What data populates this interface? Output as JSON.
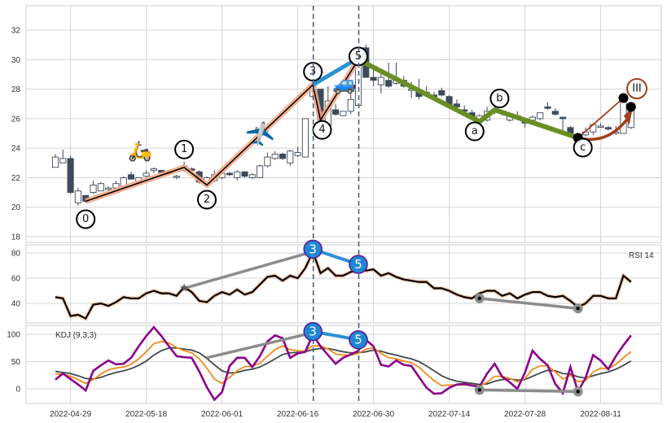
{
  "chart_data": {
    "type": "candlestick",
    "x_tick_labels": [
      "2022-04-29",
      "2022-05-18",
      "2022-06-01",
      "2022-06-16",
      "2022-06-30",
      "2022-07-14",
      "2022-07-28",
      "2022-08-11"
    ],
    "x_tick_bar_index": [
      2,
      12,
      22,
      32,
      42,
      52,
      62,
      72
    ],
    "price_panel": {
      "ylim": [
        17.7,
        33.6
      ],
      "yticks": [
        18,
        20,
        22,
        24,
        26,
        28,
        30,
        32
      ],
      "candles_ohlc": [
        [
          22.7,
          23.6,
          22.7,
          23.4
        ],
        [
          23.0,
          23.9,
          23.0,
          23.3
        ],
        [
          23.3,
          23.5,
          20.9,
          21.0
        ],
        [
          20.3,
          21.3,
          20.1,
          21.1
        ],
        [
          20.8,
          20.8,
          20.3,
          20.4
        ],
        [
          21.0,
          21.8,
          20.9,
          21.5
        ],
        [
          21.1,
          21.7,
          21.1,
          21.6
        ],
        [
          21.2,
          21.4,
          21.1,
          21.3
        ],
        [
          21.3,
          21.8,
          21.2,
          21.6
        ],
        [
          21.4,
          22.1,
          21.4,
          22.0
        ],
        [
          22.2,
          22.4,
          21.9,
          21.9
        ],
        [
          21.7,
          22.0,
          21.6,
          22.0
        ],
        [
          22.1,
          22.5,
          22.0,
          22.3
        ],
        [
          22.5,
          22.7,
          22.3,
          22.6
        ],
        [
          22.5,
          22.5,
          22.3,
          22.35
        ],
        [
          22.4,
          22.5,
          22.2,
          22.3
        ],
        [
          22.1,
          22.2,
          21.9,
          22.1
        ],
        [
          22.5,
          23.1,
          22.4,
          22.8
        ],
        [
          22.6,
          22.7,
          22.4,
          22.5
        ],
        [
          22.4,
          22.5,
          21.6,
          21.7
        ],
        [
          21.6,
          22.1,
          21.4,
          22.0
        ],
        [
          21.8,
          22.5,
          21.7,
          22.2
        ],
        [
          22.0,
          22.4,
          21.9,
          22.3
        ],
        [
          22.3,
          22.4,
          22.1,
          22.2
        ],
        [
          22.0,
          22.5,
          21.8,
          22.4
        ],
        [
          22.4,
          22.4,
          22.0,
          22.1
        ],
        [
          22.0,
          22.3,
          21.9,
          22.2
        ],
        [
          22.0,
          22.9,
          22.0,
          22.8
        ],
        [
          22.8,
          23.7,
          22.7,
          23.4
        ],
        [
          23.3,
          23.8,
          23.2,
          23.6
        ],
        [
          23.6,
          23.7,
          23.2,
          23.3
        ],
        [
          23.0,
          23.9,
          22.8,
          23.8
        ],
        [
          23.5,
          24.1,
          23.4,
          23.7
        ],
        [
          23.4,
          26.0,
          23.4,
          26.0
        ],
        [
          27.5,
          28.4,
          27.3,
          28.2
        ],
        [
          28.0,
          28.0,
          25.8,
          25.9
        ],
        [
          25.5,
          28.2,
          25.5,
          27.2
        ],
        [
          26.6,
          27.0,
          26.2,
          26.3
        ],
        [
          26.2,
          26.5,
          26.2,
          26.5
        ],
        [
          26.5,
          28.0,
          26.3,
          27.3
        ],
        [
          26.9,
          30.4,
          26.9,
          30.2
        ],
        [
          30.8,
          31.0,
          28.8,
          28.8
        ],
        [
          28.8,
          29.3,
          28.2,
          28.6
        ],
        [
          28.3,
          29.2,
          27.7,
          28.8
        ],
        [
          28.6,
          29.8,
          28.1,
          28.2
        ],
        [
          28.4,
          29.8,
          28.3,
          28.6
        ],
        [
          28.6,
          28.9,
          28.1,
          28.2
        ],
        [
          28.0,
          28.5,
          27.4,
          28.0
        ],
        [
          27.8,
          28.7,
          27.3,
          27.5
        ],
        [
          27.6,
          28.2,
          27.5,
          27.8
        ],
        [
          27.6,
          27.8,
          27.4,
          27.5
        ],
        [
          27.9,
          28.1,
          27.5,
          27.6
        ],
        [
          27.5,
          27.6,
          26.8,
          26.9
        ],
        [
          27.0,
          27.3,
          26.7,
          26.8
        ],
        [
          26.6,
          26.9,
          26.4,
          26.5
        ],
        [
          26.4,
          26.6,
          26.0,
          26.1
        ],
        [
          25.8,
          26.3,
          25.7,
          26.2
        ],
        [
          25.9,
          26.8,
          25.8,
          26.5
        ],
        [
          26.5,
          26.8,
          26.3,
          26.6
        ],
        [
          26.5,
          26.6,
          26.2,
          26.4
        ],
        [
          25.9,
          26.4,
          25.8,
          26.3
        ],
        [
          26.0,
          26.5,
          25.9,
          26.2
        ],
        [
          25.9,
          26.0,
          25.4,
          25.7
        ],
        [
          25.9,
          26.2,
          25.8,
          26.1
        ],
        [
          26.0,
          26.4,
          25.9,
          26.4
        ],
        [
          26.8,
          27.1,
          26.6,
          26.7
        ],
        [
          26.5,
          26.7,
          26.2,
          26.3
        ],
        [
          26.1,
          26.1,
          25.2,
          26.0
        ],
        [
          25.4,
          25.5,
          25.0,
          25.0
        ],
        [
          24.8,
          25.0,
          24.6,
          24.7
        ],
        [
          24.9,
          25.4,
          24.8,
          25.1
        ],
        [
          25.1,
          25.7,
          24.9,
          25.6
        ],
        [
          25.5,
          25.7,
          25.4,
          25.5
        ],
        [
          25.4,
          25.5,
          25.2,
          25.3
        ],
        [
          25.0,
          25.5,
          24.9,
          25.1
        ],
        [
          25.0,
          27.5,
          25.0,
          27.4
        ],
        [
          25.4,
          26.9,
          25.3,
          26.8
        ]
      ],
      "elliott_impulse": {
        "labels": [
          "0",
          "1",
          "2",
          "3",
          "4",
          "5"
        ],
        "bar_index": [
          4,
          17,
          20,
          34,
          35,
          40
        ],
        "price": [
          20.4,
          22.7,
          21.5,
          28.3,
          25.9,
          30.0
        ]
      },
      "elliott_correction": {
        "labels": [
          "a",
          "b",
          "c"
        ],
        "bar_index": [
          56,
          58,
          69
        ],
        "price": [
          25.8,
          26.6,
          24.7
        ]
      },
      "wave_iii_projection": {
        "label": "III",
        "from_bar": 69,
        "from_price": 24.7,
        "to_bar": 75,
        "to_price": 27.4,
        "second_point_price": 26.8
      },
      "wave_3_to_5_line": {
        "from_label": "3",
        "to_label": "5"
      },
      "icons": {
        "scooter": "🛵",
        "airplane": "✈️",
        "car": "🚙"
      },
      "vertical_markers_bar_index": [
        34,
        40
      ]
    },
    "rsi_panel": {
      "title": "RSI 14",
      "yticks": [
        40,
        60,
        80
      ],
      "ylim": [
        24,
        86
      ],
      "values": [
        45,
        44,
        30,
        31,
        28,
        39,
        40,
        38,
        41,
        45,
        44,
        44,
        48,
        50,
        48,
        48,
        46,
        53,
        49,
        42,
        41,
        46,
        49,
        47,
        51,
        47,
        49,
        55,
        61,
        62,
        58,
        62,
        60,
        68,
        81,
        64,
        68,
        62,
        62,
        65,
        66,
        66,
        67,
        62,
        64,
        61,
        59,
        58,
        57,
        57,
        52,
        52,
        50,
        47,
        45,
        44,
        48,
        50,
        50,
        46,
        48,
        44,
        47,
        49,
        49,
        46,
        45,
        46,
        42,
        37,
        40,
        46,
        46,
        44,
        44,
        62,
        57
      ],
      "divergence_up": {
        "from_bar": 17,
        "from_value": 52,
        "to_bar": 34,
        "to_value": 81
      },
      "markers": [
        {
          "label": "3",
          "bar": 34,
          "value": 83
        },
        {
          "label": "5",
          "bar": 40,
          "value": 71
        }
      ],
      "divergence_down": {
        "from_bar": 56,
        "from_value": 44,
        "to_bar": 69,
        "to_value": 36
      }
    },
    "kdj_panel": {
      "title": "KDJ (9,3,3)",
      "yticks": [
        0,
        50,
        100
      ],
      "ylim": [
        -28,
        120
      ],
      "K": [
        27,
        27,
        23,
        17,
        10,
        17,
        27,
        35,
        38,
        40,
        45,
        55,
        68,
        83,
        87,
        84,
        76,
        70,
        66,
        55,
        38,
        18,
        10,
        21,
        33,
        41,
        41,
        47,
        60,
        72,
        79,
        72,
        70,
        69,
        79,
        79,
        73,
        64,
        62,
        62,
        65,
        73,
        75,
        65,
        57,
        55,
        51,
        48,
        40,
        27,
        15,
        6,
        7,
        7,
        7,
        7,
        5,
        12,
        23,
        23,
        19,
        13,
        19,
        36,
        42,
        42,
        31,
        18,
        25,
        13,
        15,
        31,
        38,
        37,
        45,
        57,
        68
      ],
      "D": [
        32,
        30,
        28,
        24,
        19,
        18,
        21,
        26,
        30,
        33,
        37,
        43,
        51,
        62,
        70,
        75,
        75,
        73,
        71,
        66,
        56,
        44,
        33,
        29,
        30,
        34,
        36,
        40,
        47,
        55,
        63,
        66,
        67,
        68,
        72,
        74,
        74,
        71,
        68,
        66,
        66,
        68,
        71,
        69,
        65,
        62,
        58,
        55,
        50,
        42,
        33,
        24,
        18,
        14,
        12,
        10,
        8,
        9,
        14,
        17,
        18,
        16,
        17,
        23,
        29,
        34,
        33,
        28,
        27,
        22,
        20,
        24,
        28,
        31,
        36,
        43,
        51
      ],
      "J": [
        17,
        28,
        18,
        8,
        -3,
        33,
        43,
        52,
        45,
        46,
        57,
        78,
        97,
        113,
        97,
        78,
        60,
        58,
        57,
        32,
        3,
        -20,
        -6,
        42,
        57,
        57,
        40,
        60,
        87,
        98,
        93,
        57,
        65,
        68,
        100,
        78,
        62,
        46,
        57,
        63,
        70,
        90,
        78,
        44,
        41,
        52,
        44,
        42,
        22,
        2,
        -9,
        -8,
        2,
        8,
        9,
        6,
        4,
        28,
        46,
        22,
        12,
        0,
        30,
        70,
        55,
        43,
        9,
        -8,
        40,
        -5,
        20,
        62,
        52,
        36,
        60,
        80,
        98
      ],
      "divergence_up": {
        "from_bar": 20,
        "from_value": 57,
        "to_bar": 34,
        "to_value": 103
      },
      "markers": [
        {
          "label": "3",
          "bar": 34,
          "value": 105
        },
        {
          "label": "5",
          "bar": 40,
          "value": 90
        }
      ],
      "divergence_down": {
        "from_bar": 56,
        "from_value": -2,
        "to_bar": 69,
        "to_value": -5
      }
    },
    "colors": {
      "up_candle": "#ffffff",
      "down_candle": "#3d4a5c",
      "impulse_glow": "#f4a582",
      "impulse_line": "#000000",
      "wave_3_5": "#2b8fd6",
      "correction": "#6b8e23",
      "projection": "#a0401a",
      "K": "#f28a1a",
      "D": "#3f4a4a",
      "J": "#8b008b",
      "divergence": "#8c8c8c",
      "marker_fill": "#1e88d6",
      "marker_edge": "#5b1a8a",
      "rsi_line": "#000000",
      "rsi_glow": "#f4b183",
      "vline": "#4a6080"
    }
  }
}
